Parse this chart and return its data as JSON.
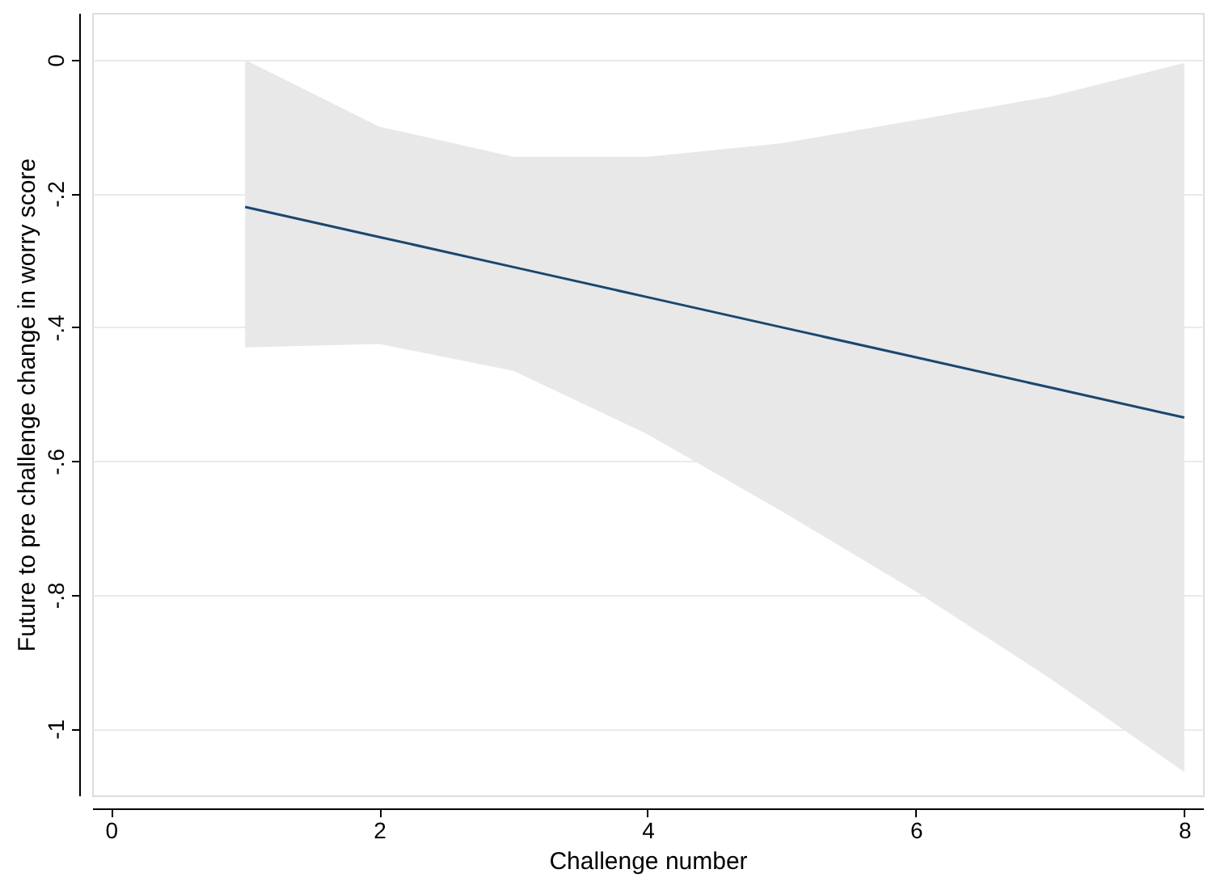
{
  "chart_data": {
    "type": "line",
    "xlabel": "Challenge number",
    "ylabel": "Future to pre challenge change in worry score",
    "x": [
      1,
      2,
      3,
      4,
      5,
      6,
      7,
      8
    ],
    "series": [
      {
        "color": "#1a476f",
        "values": [
          -0.22,
          -0.265,
          -0.31,
          -0.355,
          -0.4,
          -0.445,
          -0.49,
          -0.535
        ],
        "lower": [
          -0.43,
          -0.425,
          -0.465,
          -0.56,
          -0.675,
          -0.795,
          -0.925,
          -1.065
        ],
        "upper": [
          0.0,
          -0.1,
          -0.145,
          -0.145,
          -0.125,
          -0.09,
          -0.055,
          -0.005
        ]
      }
    ],
    "xlim": [
      -0.14,
      8.14
    ],
    "xticks": [
      0,
      2,
      4,
      6,
      8
    ],
    "ylim": [
      -1.1,
      0.07
    ],
    "yticks": [
      {
        "value": -1,
        "label": "-1"
      },
      {
        "value": -0.8,
        "label": "-.8"
      },
      {
        "value": -0.6,
        "label": "-.6"
      },
      {
        "value": -0.4,
        "label": "-.4"
      },
      {
        "value": -0.2,
        "label": "-.2"
      },
      {
        "value": 0,
        "label": "0"
      }
    ],
    "grid": "y",
    "marker": "none",
    "line_style": "solid"
  }
}
